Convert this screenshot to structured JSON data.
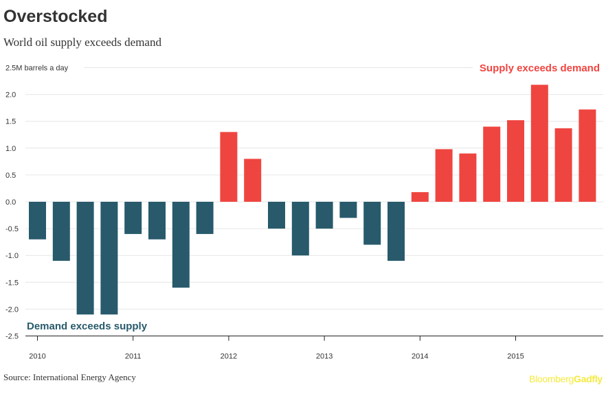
{
  "header": {
    "title": "Overstocked",
    "subtitle": "World oil supply exceeds demand"
  },
  "footer": {
    "source": "Source: International Energy Agency",
    "logo_part1": "Bloomberg",
    "logo_part2": "Gadfly"
  },
  "colors": {
    "positive": "#ef4540",
    "negative": "#285a6c",
    "grid": "#e6e6e6",
    "axis": "#222222",
    "logo": "#f4ea3d"
  },
  "chart_data": {
    "type": "bar",
    "title": "Overstocked",
    "subtitle": "World oil supply exceeds demand",
    "ylabel": "M barrels a day",
    "unit_label": "2.5M barrels a day",
    "ylim": [
      -2.5,
      2.5
    ],
    "yticks": [
      2.5,
      2.0,
      1.5,
      1.0,
      0.5,
      0.0,
      -0.5,
      -1.0,
      -1.5,
      -2.0,
      -2.5
    ],
    "ytick_labels": [
      "2.5M barrels a day",
      "2.0",
      "1.5",
      "1.0",
      "0.5",
      "0.0",
      "-0.5",
      "-1.0",
      "-1.5",
      "-2.0",
      "-2.5"
    ],
    "grid": true,
    "categories": [
      "2010 Q1",
      "2010 Q2",
      "2010 Q3",
      "2010 Q4",
      "2011 Q1",
      "2011 Q2",
      "2011 Q3",
      "2011 Q4",
      "2012 Q1",
      "2012 Q2",
      "2012 Q3",
      "2012 Q4",
      "2013 Q1",
      "2013 Q2",
      "2013 Q3",
      "2013 Q4",
      "2014 Q1",
      "2014 Q2",
      "2014 Q3",
      "2014 Q4",
      "2015 Q1",
      "2015 Q2",
      "2015 Q3",
      "2015 Q4"
    ],
    "values": [
      -0.7,
      -1.1,
      -2.1,
      -2.1,
      -0.6,
      -0.7,
      -1.6,
      -0.6,
      1.3,
      0.8,
      -0.5,
      -1.0,
      -0.5,
      -0.3,
      -0.8,
      -1.1,
      0.18,
      0.98,
      0.9,
      1.4,
      1.52,
      2.18,
      1.37,
      1.72
    ],
    "x_tick_labels": [
      "2010",
      "2011",
      "2012",
      "2013",
      "2014",
      "2015"
    ],
    "annotations": {
      "positive": "Supply exceeds demand",
      "negative": "Demand exceeds supply"
    }
  }
}
